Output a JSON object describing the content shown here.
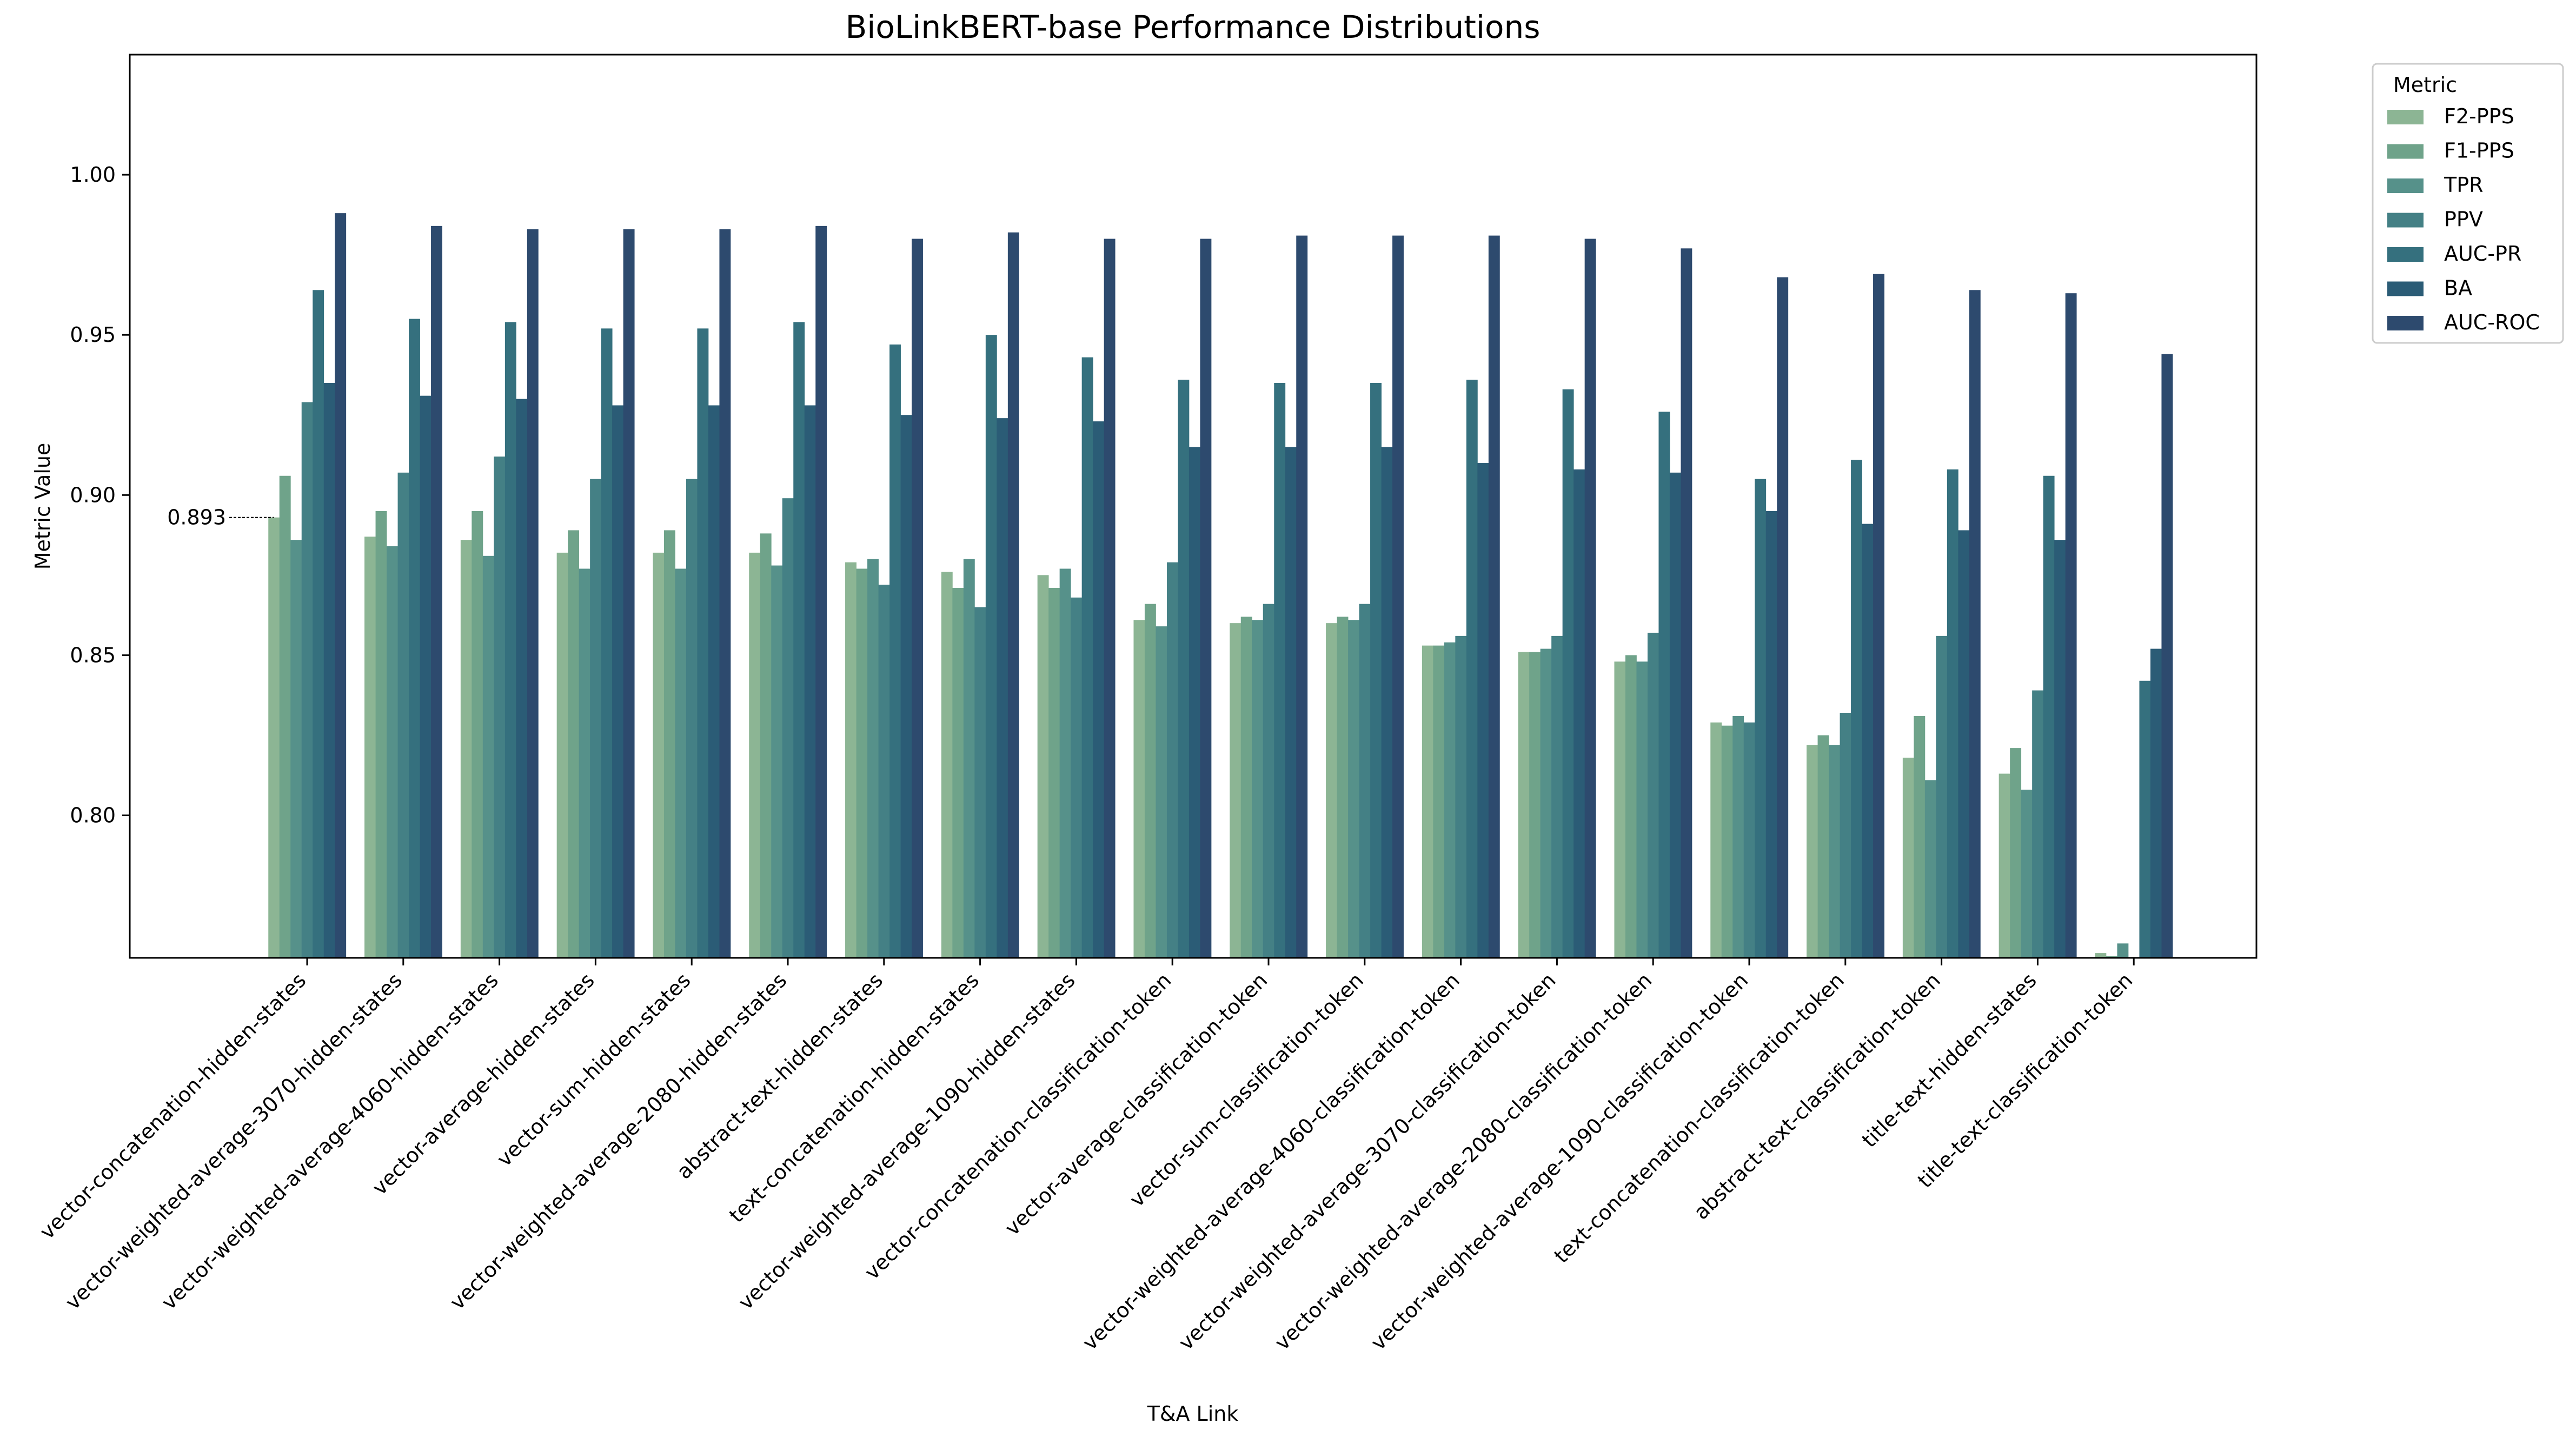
{
  "chart_data": {
    "type": "bar",
    "title": "BioLinkBERT-base Performance Distributions",
    "xlabel": "T&A Link",
    "ylabel": "Metric Value",
    "ylim": [
      0.7555,
      1.0375
    ],
    "yticks": [
      "0.80",
      "0.85",
      "0.90",
      "0.95",
      "1.00"
    ],
    "grid": false,
    "legend": {
      "title": "Metric",
      "placement": "outside top-right"
    },
    "annotation": {
      "text": "0.893",
      "category_index": 0,
      "series_index": 0,
      "value": 0.893
    },
    "categories": [
      "vector-concatenation-hidden-states",
      "vector-weighted-average-3070-hidden-states",
      "vector-weighted-average-4060-hidden-states",
      "vector-average-hidden-states",
      "vector-sum-hidden-states",
      "vector-weighted-average-2080-hidden-states",
      "abstract-text-hidden-states",
      "text-concatenation-hidden-states",
      "vector-weighted-average-1090-hidden-states",
      "vector-concatenation-classification-token",
      "vector-average-classification-token",
      "vector-sum-classification-token",
      "vector-weighted-average-4060-classification-token",
      "vector-weighted-average-3070-classification-token",
      "vector-weighted-average-2080-classification-token",
      "vector-weighted-average-1090-classification-token",
      "text-concatenation-classification-token",
      "abstract-text-classification-token",
      "title-text-hidden-states",
      "title-text-classification-token"
    ],
    "series": [
      {
        "name": "F2-PPS",
        "color": "#8cb594",
        "values": [
          0.893,
          0.887,
          0.886,
          0.882,
          0.882,
          0.882,
          0.879,
          0.876,
          0.875,
          0.861,
          0.86,
          0.86,
          0.853,
          0.851,
          0.848,
          0.829,
          0.822,
          0.818,
          0.813,
          0.757
        ]
      },
      {
        "name": "F1-PPS",
        "color": "#6fa38a",
        "values": [
          0.906,
          0.895,
          0.895,
          0.889,
          0.889,
          0.888,
          0.877,
          0.871,
          0.871,
          0.866,
          0.862,
          0.862,
          0.853,
          0.851,
          0.85,
          0.828,
          0.825,
          0.831,
          0.821,
          0.756
        ]
      },
      {
        "name": "TPR",
        "color": "#56918a",
        "values": [
          0.886,
          0.884,
          0.881,
          0.877,
          0.877,
          0.878,
          0.88,
          0.88,
          0.877,
          0.859,
          0.861,
          0.861,
          0.854,
          0.852,
          0.848,
          0.831,
          0.822,
          0.811,
          0.808,
          0.76
        ]
      },
      {
        "name": "PPV",
        "color": "#448085",
        "values": [
          0.929,
          0.907,
          0.912,
          0.905,
          0.905,
          0.899,
          0.872,
          0.865,
          0.868,
          0.879,
          0.866,
          0.866,
          0.856,
          0.856,
          0.857,
          0.829,
          0.832,
          0.856,
          0.839,
          0.74
        ]
      },
      {
        "name": "AUC-PR",
        "color": "#35707e",
        "values": [
          0.964,
          0.955,
          0.954,
          0.952,
          0.952,
          0.954,
          0.947,
          0.95,
          0.943,
          0.936,
          0.935,
          0.935,
          0.936,
          0.933,
          0.926,
          0.905,
          0.911,
          0.908,
          0.906,
          0.842
        ]
      },
      {
        "name": "BA",
        "color": "#2b5c76",
        "values": [
          0.935,
          0.931,
          0.93,
          0.928,
          0.928,
          0.928,
          0.925,
          0.924,
          0.923,
          0.915,
          0.915,
          0.915,
          0.91,
          0.908,
          0.907,
          0.895,
          0.891,
          0.889,
          0.886,
          0.852
        ]
      },
      {
        "name": "AUC-ROC",
        "color": "#2d4a6e",
        "values": [
          0.988,
          0.984,
          0.983,
          0.983,
          0.983,
          0.984,
          0.98,
          0.982,
          0.98,
          0.98,
          0.981,
          0.981,
          0.981,
          0.98,
          0.977,
          0.968,
          0.969,
          0.964,
          0.963,
          0.944
        ]
      }
    ]
  }
}
